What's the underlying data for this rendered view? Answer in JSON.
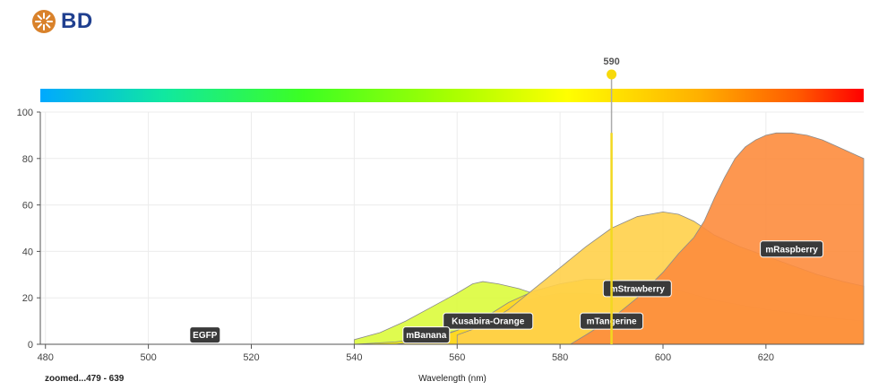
{
  "brand": {
    "logo_text": "BD",
    "logo_color": "#d9822b"
  },
  "footer": {
    "range_label": "zoomed...479 - 639"
  },
  "chart_data": {
    "type": "area",
    "xlabel": "Wavelength (nm)",
    "ylabel": "",
    "xlim": [
      479,
      639
    ],
    "ylim": [
      0,
      100
    ],
    "x_ticks": [
      480,
      500,
      520,
      540,
      560,
      580,
      600,
      620
    ],
    "y_ticks": [
      0,
      20,
      40,
      60,
      80,
      100
    ],
    "grid": true,
    "cursor": {
      "value": 590,
      "label": "590"
    },
    "series": [
      {
        "name": "EGFP",
        "color": "#ffffff",
        "label_at": [
          511,
          4
        ],
        "points": [
          [
            479,
            0
          ],
          [
            639,
            0
          ]
        ]
      },
      {
        "name": "Kusabira-Orange",
        "color": "#dcfb3c",
        "label_at": [
          566,
          10
        ],
        "points": [
          [
            540,
            2
          ],
          [
            545,
            5
          ],
          [
            550,
            10
          ],
          [
            555,
            16
          ],
          [
            560,
            22
          ],
          [
            563,
            26
          ],
          [
            565,
            27
          ],
          [
            568,
            26
          ],
          [
            572,
            24
          ],
          [
            576,
            21
          ],
          [
            580,
            17
          ],
          [
            585,
            12
          ],
          [
            590,
            7
          ],
          [
            595,
            4.5
          ],
          [
            600,
            3
          ],
          [
            610,
            1.5
          ],
          [
            620,
            1
          ],
          [
            639,
            0.5
          ]
        ]
      },
      {
        "name": "mBanana",
        "color": "#f1e50f",
        "label_at": [
          554,
          4
        ],
        "points": [
          [
            540,
            0
          ],
          [
            548,
            1
          ],
          [
            555,
            3
          ],
          [
            560,
            6
          ],
          [
            565,
            11
          ],
          [
            570,
            16
          ],
          [
            575,
            20
          ],
          [
            580,
            22
          ],
          [
            585,
            22
          ],
          [
            590,
            21
          ],
          [
            595,
            18
          ],
          [
            600,
            14
          ],
          [
            605,
            11
          ],
          [
            610,
            9
          ],
          [
            620,
            6
          ],
          [
            630,
            4
          ],
          [
            639,
            3
          ]
        ]
      },
      {
        "name": "mTangerine",
        "color": "#ffd625",
        "label_at": [
          590,
          10
        ],
        "points": [
          [
            548,
            0
          ],
          [
            555,
            2
          ],
          [
            560,
            6
          ],
          [
            565,
            11
          ],
          [
            570,
            18
          ],
          [
            575,
            23
          ],
          [
            580,
            26
          ],
          [
            585,
            28
          ],
          [
            590,
            28
          ],
          [
            595,
            27
          ],
          [
            600,
            25
          ],
          [
            605,
            22
          ],
          [
            610,
            19
          ],
          [
            615,
            17
          ],
          [
            620,
            15
          ],
          [
            630,
            12
          ],
          [
            639,
            10
          ]
        ]
      },
      {
        "name": "mStrawberry",
        "color": "#ffd04a",
        "label_at": [
          595,
          24
        ],
        "points": [
          [
            560,
            4
          ],
          [
            565,
            8
          ],
          [
            570,
            15
          ],
          [
            575,
            24
          ],
          [
            580,
            33
          ],
          [
            585,
            42
          ],
          [
            590,
            50
          ],
          [
            595,
            55
          ],
          [
            600,
            57
          ],
          [
            603,
            56
          ],
          [
            606,
            53
          ],
          [
            610,
            47
          ],
          [
            615,
            42
          ],
          [
            620,
            38
          ],
          [
            625,
            34
          ],
          [
            630,
            30
          ],
          [
            635,
            27
          ],
          [
            639,
            25
          ]
        ]
      },
      {
        "name": "mRaspberry",
        "color": "#fd8c3d",
        "label_at": [
          625,
          41
        ],
        "points": [
          [
            582,
            0
          ],
          [
            585,
            4
          ],
          [
            590,
            11
          ],
          [
            595,
            20
          ],
          [
            600,
            31
          ],
          [
            603,
            39
          ],
          [
            606,
            46
          ],
          [
            608,
            53
          ],
          [
            610,
            63
          ],
          [
            612,
            72
          ],
          [
            614,
            80
          ],
          [
            616,
            85
          ],
          [
            618,
            88
          ],
          [
            620,
            90
          ],
          [
            622,
            91
          ],
          [
            625,
            91
          ],
          [
            628,
            90
          ],
          [
            631,
            88
          ],
          [
            633,
            86
          ],
          [
            636,
            83
          ],
          [
            638,
            81
          ],
          [
            639,
            80
          ]
        ]
      }
    ]
  }
}
